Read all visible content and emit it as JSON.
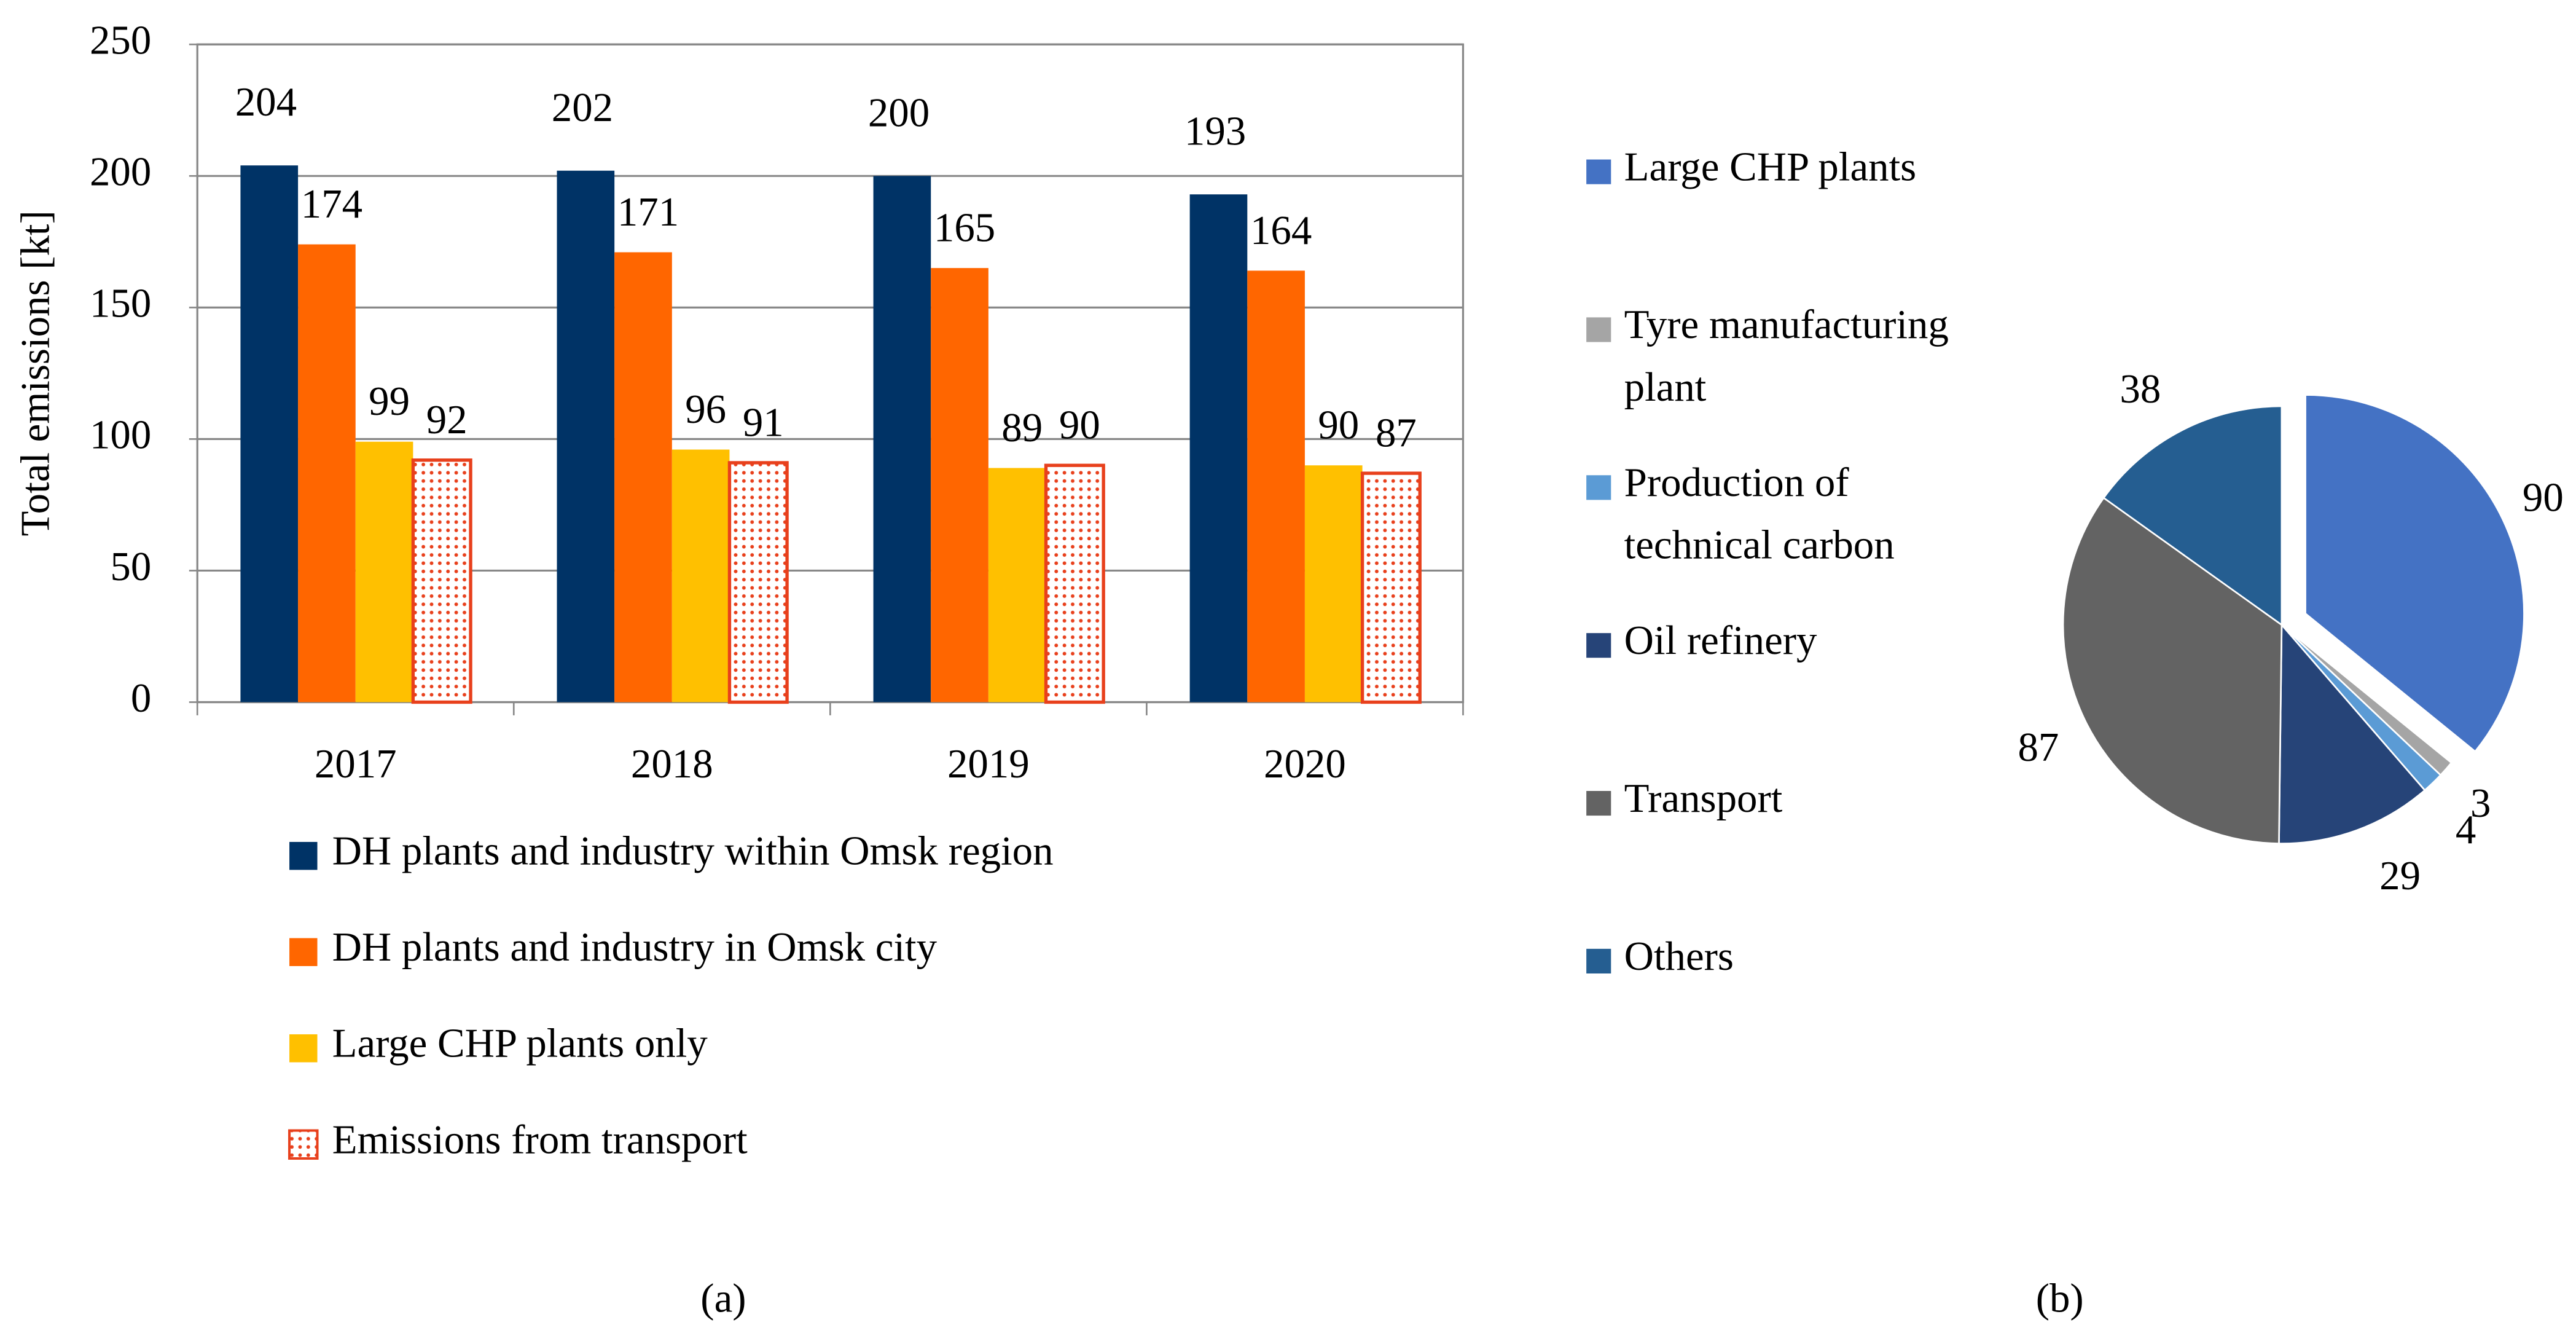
{
  "chart_data": [
    {
      "type": "bar",
      "y_label": "Total emissions [kt]",
      "caption": "(a)",
      "categories": [
        "2017",
        "2018",
        "2019",
        "2020"
      ],
      "ylim": [
        0,
        250
      ],
      "yticks": [
        0,
        50,
        100,
        150,
        200,
        250
      ],
      "grid": true,
      "series": [
        {
          "name": "DH plants and industry within Omsk region",
          "color": "#003366",
          "values": [
            204,
            202,
            200,
            193
          ]
        },
        {
          "name": "DH plants and industry in Omsk city",
          "color": "#ff6600",
          "values": [
            174,
            171,
            165,
            164
          ]
        },
        {
          "name": "Large CHP plants only",
          "color": "#ffc000",
          "values": [
            99,
            96,
            89,
            90
          ]
        },
        {
          "name": "Emissions from transport",
          "color": "#e8401c",
          "pattern": "dots",
          "values": [
            92,
            91,
            90,
            87
          ]
        }
      ]
    },
    {
      "type": "pie",
      "caption": "(b)",
      "categories": [
        "Large CHP plants",
        "Tyre manufacturing plant",
        "Production of technical carbon",
        "Oil refinery",
        "Transport",
        "Others"
      ],
      "values": [
        90,
        3,
        4,
        29,
        87,
        38
      ],
      "colors": [
        "#4472c4",
        "#a5a5a5",
        "#5b9bd5",
        "#264478",
        "#636363",
        "#255e91"
      ],
      "exploded": [
        0
      ]
    }
  ]
}
